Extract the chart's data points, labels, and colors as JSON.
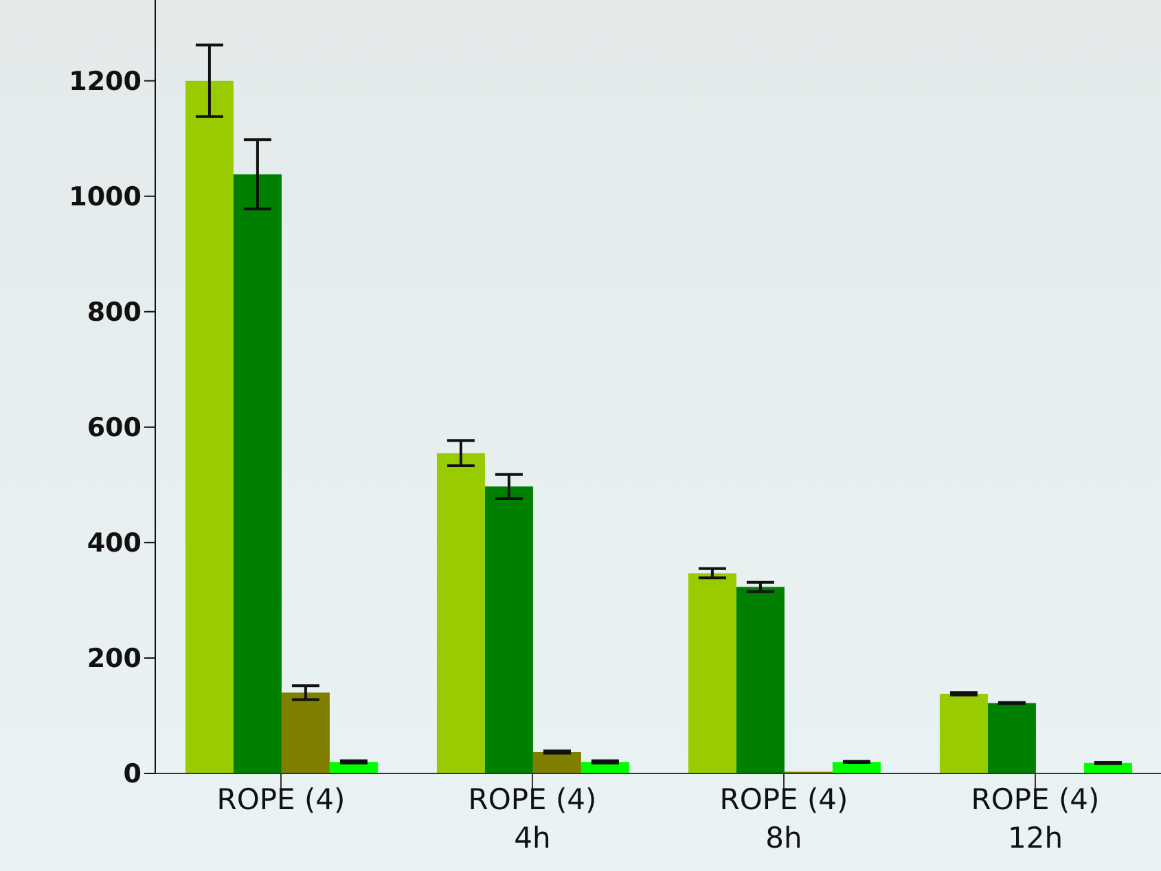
{
  "chart_data": {
    "type": "bar",
    "categories": [
      "ROPE (4)",
      "ROPE (4)\n4h",
      "ROPE (4)\n8h",
      "ROPE (4)\n12h"
    ],
    "series": [
      {
        "color": "#99cc00",
        "values": [
          1200,
          555,
          347,
          138
        ],
        "errors": [
          62,
          22,
          8,
          2
        ]
      },
      {
        "color": "#008000",
        "values": [
          1038,
          497,
          323,
          122
        ],
        "errors": [
          60,
          21,
          8,
          1
        ]
      },
      {
        "color": "#808000",
        "values": [
          140,
          37,
          3,
          1
        ],
        "errors": [
          12,
          2,
          null,
          null
        ]
      },
      {
        "color": "#00ff00",
        "values": [
          20,
          20,
          20,
          18
        ],
        "errors": [
          2,
          2,
          1,
          1
        ]
      }
    ],
    "ylim": [
      0,
      1340
    ],
    "yticks": [
      0,
      200,
      400,
      600,
      800,
      1000,
      1200
    ],
    "grid": false,
    "legend": false
  }
}
